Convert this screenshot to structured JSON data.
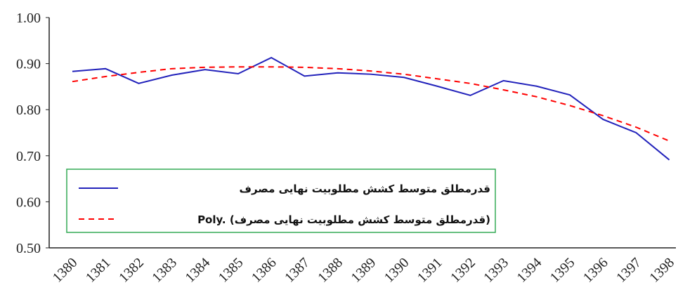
{
  "chart_data": {
    "type": "line",
    "categories": [
      "1380",
      "1381",
      "1382",
      "1383",
      "1384",
      "1385",
      "1386",
      "1387",
      "1388",
      "1389",
      "1390",
      "1391",
      "1392",
      "1393",
      "1394",
      "1395",
      "1396",
      "1397",
      "1398"
    ],
    "series": [
      {
        "name": "قدرمطلق متوسط کشش مطلوبیت نهایی مصرف",
        "color": "#2222bb",
        "line_style": "solid",
        "values": [
          0.883,
          0.889,
          0.857,
          0.875,
          0.887,
          0.878,
          0.913,
          0.873,
          0.88,
          0.877,
          0.87,
          0.851,
          0.831,
          0.863,
          0.851,
          0.832,
          0.779,
          0.75,
          0.691
        ]
      },
      {
        "name": "Poly. (قدرمطلق متوسط کشش مطلوبیت نهایی مصرف)",
        "color": "#ff0000",
        "line_style": "dashed",
        "values": [
          0.861,
          0.872,
          0.881,
          0.889,
          0.892,
          0.893,
          0.893,
          0.892,
          0.889,
          0.884,
          0.877,
          0.867,
          0.857,
          0.843,
          0.828,
          0.809,
          0.787,
          0.762,
          0.732
        ]
      }
    ],
    "ylim": [
      0.5,
      1.0
    ],
    "yticks": [
      {
        "value": 0.5,
        "label": "0.50"
      },
      {
        "value": 0.6,
        "label": "0.60"
      },
      {
        "value": 0.7,
        "label": "0.70"
      },
      {
        "value": 0.8,
        "label": "0.80"
      },
      {
        "value": 0.9,
        "label": "0.90"
      },
      {
        "value": 1.0,
        "label": "1.00"
      }
    ],
    "grid": false,
    "legend_border_color": "#33aa55"
  }
}
